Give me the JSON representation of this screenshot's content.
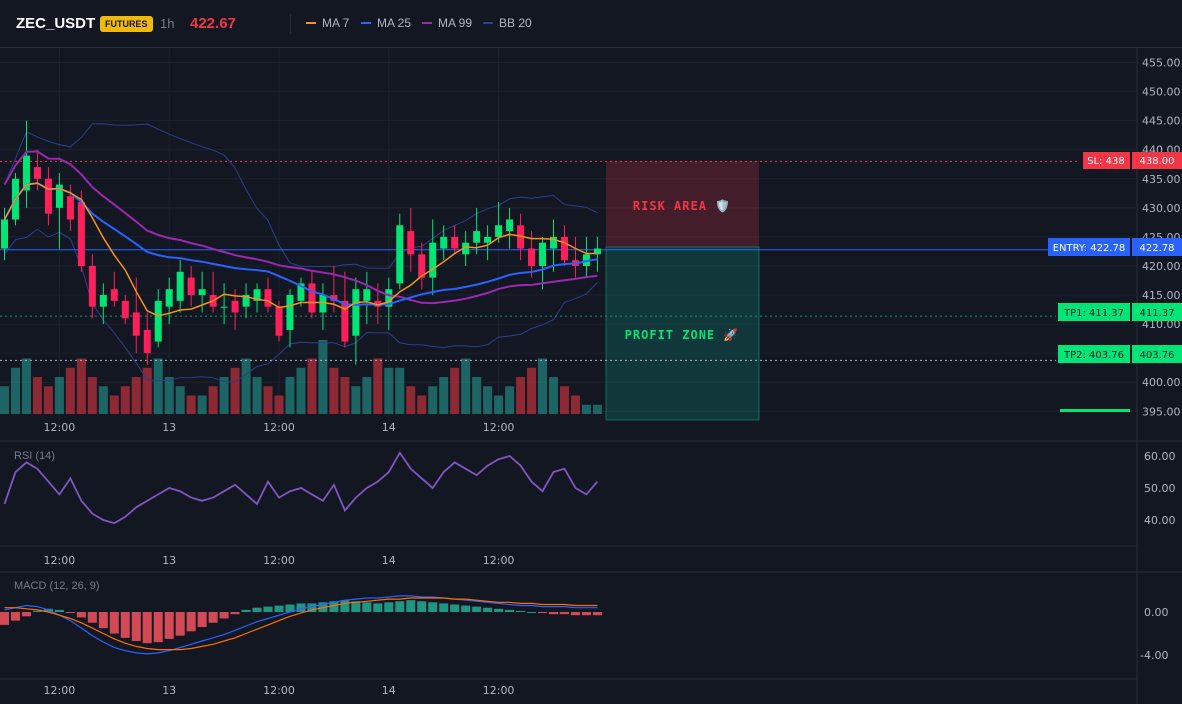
{
  "header": {
    "symbol": "ZEC_USDT",
    "badge": "FUTURES",
    "timeframe": "1h",
    "last_price": "422.67",
    "legend": [
      {
        "name": "MA 7",
        "color": "#f7931a"
      },
      {
        "name": "MA 25",
        "color": "#2962ff"
      },
      {
        "name": "MA 99",
        "color": "#9c27b0"
      },
      {
        "name": "BB 20",
        "color": "#2a3f8f"
      }
    ]
  },
  "colors": {
    "up": "#26a69a",
    "up_bright": "#00e676",
    "down": "#f23645",
    "down_bright": "#ff1f5a"
  },
  "trade": {
    "sl_label": "SL: 438",
    "sl_value": "438.00",
    "entry_label": "ENTRY: 422.78",
    "entry_value": "422.78",
    "tp1_label": "TP1: 411.37",
    "tp1_value": "411.37",
    "tp2_label": "TP2: 403.76",
    "tp2_value": "403.76",
    "risk_label": "RISK AREA 🛡️",
    "profit_label": "PROFIT ZONE 🚀"
  },
  "time_ticks": [
    "12:00",
    "13",
    "12:00",
    "14",
    "12:00"
  ],
  "rsi": {
    "title": "RSI (14)",
    "ticks": [
      "60.00",
      "50.00",
      "40.00"
    ]
  },
  "macd": {
    "title": "MACD (12, 26, 9)",
    "ticks": [
      "0.00",
      "-4.00"
    ]
  },
  "chart_data": [
    {
      "type": "candlestick",
      "title": "ZEC_USDT 1h",
      "y_ticks": [
        455,
        450,
        445,
        440,
        435,
        430,
        425,
        420,
        415,
        410,
        405,
        400,
        395
      ],
      "ylim": [
        393.5,
        457.5
      ],
      "x_tick_labels": [
        "12:00",
        "13",
        "12:00",
        "14",
        "12:00"
      ],
      "x_tick_bars": [
        5,
        15,
        25,
        35,
        45
      ],
      "levels": {
        "sl": 438.0,
        "entry": 422.78,
        "tp1": 411.37,
        "tp2": 403.76
      },
      "ohlc": [
        [
          423,
          430,
          421,
          428
        ],
        [
          428,
          436,
          427,
          435
        ],
        [
          433,
          445,
          430,
          439
        ],
        [
          437,
          440,
          433,
          435
        ],
        [
          435,
          437,
          427,
          429
        ],
        [
          430,
          436,
          423,
          434
        ],
        [
          432,
          434,
          426,
          428
        ],
        [
          431,
          433,
          419,
          420
        ],
        [
          420,
          422,
          411,
          413
        ],
        [
          413,
          417,
          410,
          415
        ],
        [
          416,
          419,
          413,
          414
        ],
        [
          414,
          415,
          410,
          411
        ],
        [
          412,
          418,
          405,
          408
        ],
        [
          409,
          412,
          403,
          405
        ],
        [
          407,
          416,
          406,
          414
        ],
        [
          413,
          418,
          410,
          416
        ],
        [
          414,
          421,
          412,
          419
        ],
        [
          418,
          420,
          413,
          415
        ],
        [
          415,
          419,
          412,
          416
        ],
        [
          415,
          419,
          412,
          413
        ],
        [
          413,
          417,
          410,
          413
        ],
        [
          414,
          416,
          409,
          412
        ],
        [
          413,
          417,
          411,
          415
        ],
        [
          414,
          417,
          412,
          416
        ],
        [
          416,
          418,
          412,
          413
        ],
        [
          413,
          414,
          407,
          408
        ],
        [
          409,
          416,
          406,
          415
        ],
        [
          414,
          418,
          413,
          417
        ],
        [
          417,
          419,
          411,
          412
        ],
        [
          412,
          417,
          409,
          415
        ],
        [
          415,
          420,
          412,
          414
        ],
        [
          414,
          419,
          406,
          407
        ],
        [
          408,
          418,
          403,
          416
        ],
        [
          414,
          419,
          410,
          416
        ],
        [
          414,
          417,
          410,
          413
        ],
        [
          413,
          418,
          409,
          416
        ],
        [
          417,
          429,
          416,
          427
        ],
        [
          426,
          430,
          419,
          422
        ],
        [
          422,
          424,
          416,
          418
        ],
        [
          418,
          428,
          415,
          424
        ],
        [
          423,
          427,
          421,
          425
        ],
        [
          425,
          427,
          422,
          423
        ],
        [
          422,
          426,
          420,
          424
        ],
        [
          424,
          430,
          422,
          426
        ],
        [
          424,
          427,
          421,
          425
        ],
        [
          425,
          431,
          424,
          427
        ],
        [
          426,
          430,
          423,
          428
        ],
        [
          427,
          429,
          421,
          423
        ],
        [
          423,
          426,
          418,
          420
        ],
        [
          420,
          425,
          416,
          424
        ],
        [
          423,
          428,
          419,
          425
        ],
        [
          425,
          427,
          420,
          421
        ],
        [
          421,
          425,
          418,
          420
        ],
        [
          420,
          425,
          418,
          422
        ],
        [
          422,
          425,
          419,
          423
        ]
      ],
      "volume": [
        3,
        5,
        6,
        4,
        3,
        4,
        5,
        6,
        4,
        3,
        2,
        3,
        4,
        5,
        6,
        4,
        3,
        2,
        2,
        3,
        4,
        5,
        6,
        4,
        3,
        2,
        4,
        5,
        6,
        8,
        5,
        4,
        3,
        4,
        6,
        5,
        5,
        3,
        2,
        3,
        4,
        5,
        6,
        4,
        3,
        2,
        3,
        4,
        5,
        6,
        4,
        3,
        2,
        1,
        1
      ]
    },
    {
      "type": "line",
      "title": "RSI (14)",
      "ylim": [
        30,
        65
      ],
      "y_ticks": [
        60,
        40
      ],
      "values": [
        45,
        55,
        58,
        56,
        52,
        48,
        53,
        46,
        42,
        40,
        39,
        41,
        44,
        46,
        48,
        50,
        49,
        47,
        46,
        47,
        49,
        51,
        48,
        45,
        52,
        47,
        49,
        50,
        48,
        46,
        51,
        43,
        47,
        50,
        52,
        55,
        61,
        56,
        53,
        50,
        55,
        58,
        56,
        54,
        57,
        59,
        60,
        57,
        52,
        49,
        55,
        56,
        50,
        48,
        52
      ]
    },
    {
      "type": "bar",
      "title": "MACD (12, 26, 9)",
      "ylim": [
        -5.5,
        1.5
      ],
      "y_ticks": [
        0,
        -4
      ],
      "histogram": [
        -1.2,
        -0.8,
        -0.4,
        0.1,
        0.3,
        0.2,
        -0.1,
        -0.5,
        -1.0,
        -1.5,
        -2.0,
        -2.4,
        -2.7,
        -2.9,
        -2.8,
        -2.5,
        -2.2,
        -1.8,
        -1.4,
        -1.0,
        -0.6,
        -0.2,
        0.2,
        0.4,
        0.5,
        0.6,
        0.7,
        0.8,
        0.8,
        0.9,
        1.0,
        1.1,
        1.0,
        0.9,
        0.8,
        0.9,
        1.0,
        1.1,
        1.0,
        0.9,
        0.8,
        0.7,
        0.6,
        0.5,
        0.4,
        0.3,
        0.2,
        0.1,
        0.0,
        -0.1,
        -0.2,
        -0.2,
        -0.3,
        -0.3,
        -0.3
      ],
      "macd": [
        0.2,
        0.4,
        0.6,
        0.5,
        0.2,
        -0.3,
        -0.8,
        -1.5,
        -2.2,
        -2.8,
        -3.3,
        -3.6,
        -3.8,
        -3.9,
        -3.8,
        -3.6,
        -3.3,
        -3.0,
        -2.7,
        -2.4,
        -2.1,
        -1.7,
        -1.3,
        -0.9,
        -0.6,
        -0.3,
        0.0,
        0.3,
        0.5,
        0.7,
        0.9,
        1.1,
        1.2,
        1.3,
        1.3,
        1.4,
        1.5,
        1.5,
        1.4,
        1.4,
        1.3,
        1.2,
        1.1,
        1.0,
        0.9,
        0.8,
        0.7,
        0.6,
        0.6,
        0.5,
        0.5,
        0.5,
        0.4,
        0.4,
        0.4
      ],
      "signal": [
        0.4,
        0.4,
        0.3,
        0.2,
        0.0,
        -0.3,
        -0.6,
        -1.0,
        -1.5,
        -2.0,
        -2.5,
        -2.9,
        -3.2,
        -3.4,
        -3.5,
        -3.5,
        -3.5,
        -3.4,
        -3.2,
        -3.0,
        -2.7,
        -2.4,
        -2.0,
        -1.6,
        -1.2,
        -0.8,
        -0.4,
        -0.1,
        0.2,
        0.4,
        0.6,
        0.8,
        0.9,
        1.0,
        1.1,
        1.2,
        1.2,
        1.3,
        1.3,
        1.3,
        1.3,
        1.2,
        1.2,
        1.1,
        1.0,
        0.9,
        0.9,
        0.8,
        0.8,
        0.7,
        0.7,
        0.7,
        0.6,
        0.6,
        0.6
      ]
    }
  ]
}
